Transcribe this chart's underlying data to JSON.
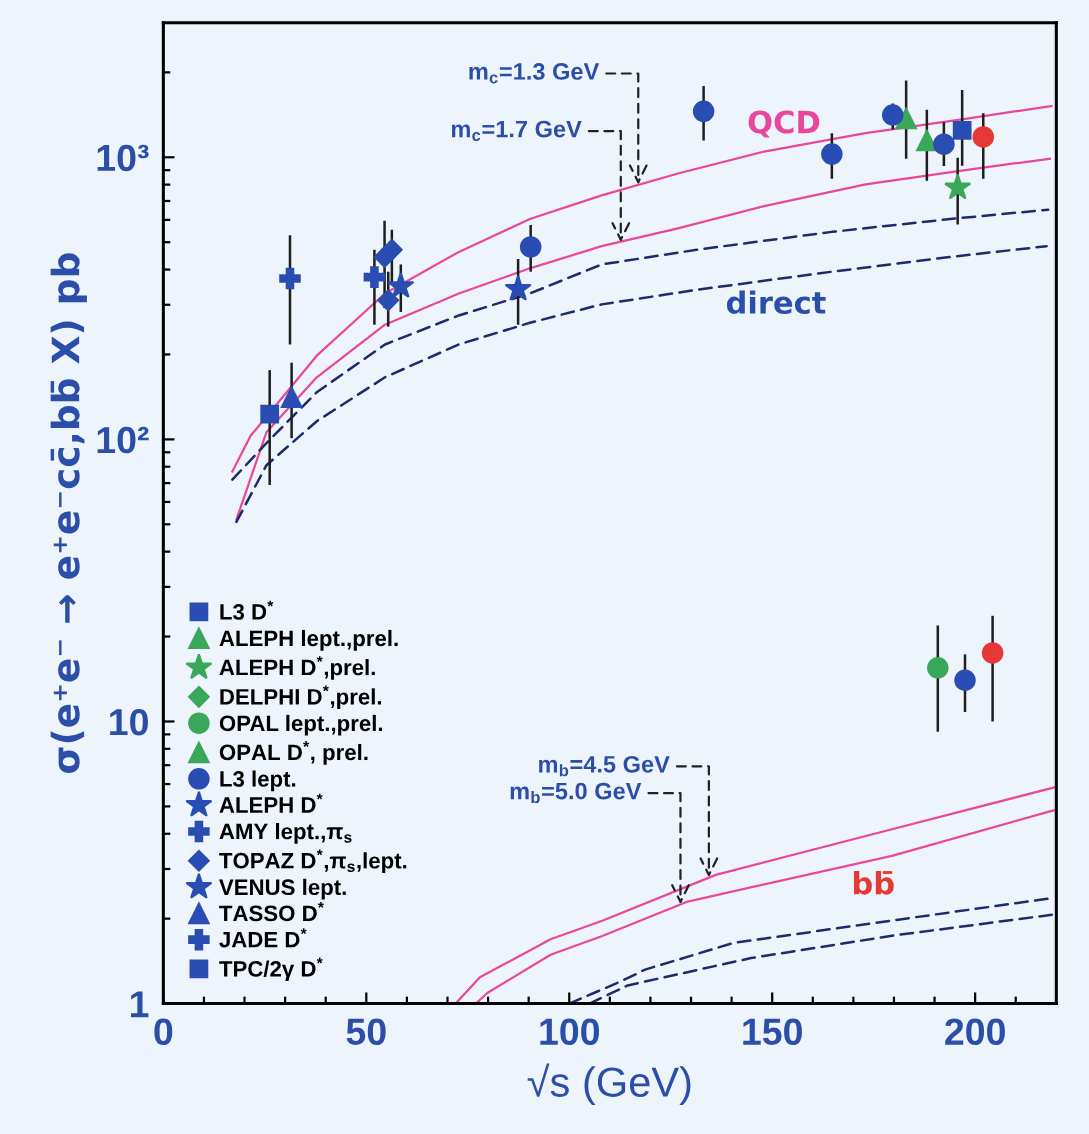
{
  "chart_data": {
    "type": "scatter",
    "xlabel": "√s (GeV)",
    "ylabel": "σ(e⁺e⁻ → e⁺e⁻cc̄,bb̄ X) pb",
    "log": true,
    "legend": "bottom left",
    "xlim": [
      0,
      220
    ],
    "ylim": [
      1,
      3000
    ],
    "xticks": [
      0,
      {
        "value": 10,
        "label": null
      },
      {
        "value": 20,
        "label": null
      },
      {
        "value": 30,
        "label": null
      },
      {
        "value": 40,
        "label": null
      },
      50,
      {
        "value": 60,
        "label": null
      },
      {
        "value": 70,
        "label": null
      },
      {
        "value": 80,
        "label": null
      },
      {
        "value": 90,
        "label": null
      },
      100,
      {
        "value": 110,
        "label": null
      },
      {
        "value": 120,
        "label": null
      },
      {
        "value": 130,
        "label": null
      },
      {
        "value": 140,
        "label": null
      },
      150,
      {
        "value": 160,
        "label": null
      },
      {
        "value": 170,
        "label": null
      },
      {
        "value": 180,
        "label": null
      },
      {
        "value": 190,
        "label": null
      },
      200,
      {
        "value": 210,
        "label": null
      }
    ],
    "yticks": [
      1,
      {
        "value": 2,
        "label": null
      },
      {
        "value": 3,
        "label": null
      },
      {
        "value": 4,
        "label": null
      },
      {
        "value": 5,
        "label": null
      },
      {
        "value": 6,
        "label": null
      },
      {
        "value": 7,
        "label": null
      },
      {
        "value": 8,
        "label": null
      },
      {
        "value": 9,
        "label": null
      },
      10,
      {
        "value": 20,
        "label": null
      },
      {
        "value": 30,
        "label": null
      },
      {
        "value": 40,
        "label": null
      },
      {
        "value": 50,
        "label": null
      },
      {
        "value": 60,
        "label": null
      },
      {
        "value": 70,
        "label": null
      },
      {
        "value": 80,
        "label": null
      },
      {
        "value": 90,
        "label": null
      },
      {
        "value": 100,
        "label": "10²"
      },
      {
        "value": 200,
        "label": null
      },
      {
        "value": 300,
        "label": null
      },
      {
        "value": 400,
        "label": null
      },
      {
        "value": 500,
        "label": null
      },
      {
        "value": 600,
        "label": null
      },
      {
        "value": 700,
        "label": null
      },
      {
        "value": 800,
        "label": null
      },
      {
        "value": 900,
        "label": null
      },
      {
        "value": 1000,
        "label": "10³"
      },
      {
        "value": 2000,
        "label": null
      }
    ],
    "series": [
      {
        "name": "L3 D$^{*}$",
        "marker": "square",
        "color": "#2a4db3",
        "x": [
          196.8
        ],
        "values": [
          1246
        ],
        "errors": [
          [
            934,
            1730
          ]
        ]
      },
      {
        "name": "ALEPH lept.,prel.",
        "marker": "triangle",
        "color": "#3aa85a",
        "x": [
          183
        ],
        "values": [
          1373
        ],
        "errors": [
          [
            989,
            1872
          ]
        ]
      },
      {
        "name": "ALEPH D$^{*}$,prel.",
        "marker": "star",
        "color": "#3aa85a",
        "x": [
          195.7
        ],
        "values": [
          780
        ],
        "errors": [
          [
            578,
            996
          ]
        ]
      },
      {
        "name": "DELPHI D$^{*}$,prel.",
        "marker": "diamond",
        "color": "#3aa85a"
      },
      {
        "name": "OPAL lept.,prel.",
        "marker": "circle",
        "color": "#3aa85a",
        "x": [
          190.8
        ],
        "values": [
          15.5
        ],
        "errors": [
          [
            9.2,
            21.9
          ]
        ]
      },
      {
        "name": "OPAL D$^{*}$, prel.",
        "marker": "triangle",
        "color": "#3aa85a",
        "x": [
          188.1
        ],
        "values": [
          1146
        ],
        "errors": [
          [
            826,
            1475
          ]
        ]
      },
      {
        "name": "L3 lept.",
        "marker": "circle",
        "color": "#2a4db3",
        "x": [
          90.5,
          133.1,
          164.7,
          179.7,
          192.3,
          197.5
        ],
        "values": [
          481,
          1455,
          1027,
          1412,
          1113,
          14.0
        ],
        "errors": [
          [
            393,
            575
          ],
          [
            1146,
            1791
          ],
          [
            839,
            1217
          ],
          [
            1254,
            1550
          ],
          [
            931,
            1330
          ],
          [
            10.8,
            17.3
          ]
        ]
      },
      {
        "name": "ALEPH D$^{*}$",
        "marker": "star",
        "color": "#2a4db3",
        "x": [
          87.4
        ],
        "values": [
          341
        ],
        "errors": [
          [
            255,
            436
          ]
        ]
      },
      {
        "name": "AMY lept.,π$_{s}$",
        "marker": "cross",
        "color": "#2a4db3",
        "x": [
          52.0
        ],
        "values": [
          376
        ],
        "errors": [
          [
            255,
            470
          ]
        ]
      },
      {
        "name": "TOPAZ D$^{*}$,π$_{s}$,lept.",
        "marker": "diamond",
        "color": "#2a4db3",
        "x": [
          54.5,
          55.4,
          56.3
        ],
        "values": [
          443,
          311,
          470
        ],
        "errors": [
          [
            292,
            596
          ],
          [
            251,
            393
          ],
          [
            359,
            553
          ]
        ]
      },
      {
        "name": "VENUS lept.",
        "marker": "star",
        "color": "#2a4db3",
        "x": [
          58.5
        ],
        "values": [
          349
        ],
        "errors": [
          [
            283,
            417
          ]
        ]
      },
      {
        "name": "TASSO D$^{*}$",
        "marker": "triangle",
        "color": "#2a4db3",
        "x": [
          31.6
        ],
        "values": [
          141
        ],
        "errors": [
          [
            101,
            187
          ]
        ]
      },
      {
        "name": "JADE D$^{*}$",
        "marker": "cross",
        "color": "#2a4db3",
        "x": [
          31.2
        ],
        "values": [
          372
        ],
        "errors": [
          [
            217,
            529
          ]
        ]
      },
      {
        "name": "TPC/2γ D$^{*}$",
        "marker": "square",
        "color": "#2a4db3",
        "x": [
          26.2
        ],
        "values": [
          123
        ],
        "errors": [
          [
            68.9,
            176
          ]
        ]
      },
      {
        "marker": "circle",
        "color": "#e53935",
        "x": [
          202,
          204.3
        ],
        "values": [
          1181,
          17.5
        ],
        "errors": [
          [
            839,
            1432
          ],
          [
            10.0,
            23.7
          ]
        ]
      },
      {
        "type": "line",
        "line_style": "solid",
        "color": "#e8479b",
        "x": [
          17,
          21.5,
          37.8,
          54.6,
          72.8,
          90.3,
          108,
          127,
          148,
          173,
          198,
          218.8
        ],
        "values": [
          77,
          103,
          198,
          329,
          462,
          604,
          733,
          878,
          1048,
          1218,
          1371,
          1520
        ]
      },
      {
        "type": "line",
        "line_style": "solid",
        "color": "#e8479b",
        "x": [
          18,
          25.4,
          37.8,
          54.6,
          72.8,
          90.3,
          108,
          127,
          148,
          173,
          198,
          218.4
        ],
        "values": [
          52,
          106,
          166,
          255,
          329,
          404,
          484,
          561,
          671,
          802,
          903,
          988
        ]
      },
      {
        "type": "line",
        "line_style": "dashed",
        "color": "#1c2b6b",
        "x": [
          17,
          25.4,
          37.8,
          54.6,
          72.8,
          90.3,
          108,
          131.4,
          164.7,
          193.8,
          218
        ],
        "values": [
          72,
          97,
          147,
          217,
          275,
          329,
          417,
          470,
          544,
          604,
          652
        ]
      },
      {
        "type": "line",
        "line_style": "dashed",
        "color": "#1c2b6b",
        "x": [
          18,
          25.4,
          37.8,
          54.6,
          72.8,
          90.3,
          108,
          131.4,
          164.7,
          193.8,
          217.6
        ],
        "values": [
          51,
          81,
          116,
          166,
          217,
          259,
          301,
          339,
          393,
          443,
          484
        ]
      },
      {
        "type": "line",
        "line_style": "solid",
        "color": "#e8479b",
        "x": [
          72,
          78,
          95.4,
          108.3,
          136.1,
          179.5,
          219.5
        ],
        "values": [
          1.0,
          1.24,
          1.69,
          1.97,
          2.86,
          4.15,
          5.84
        ]
      },
      {
        "type": "line",
        "line_style": "solid",
        "color": "#e8479b",
        "x": [
          77,
          79.8,
          95.4,
          108.3,
          129.2,
          179.5,
          219.5
        ],
        "values": [
          1.0,
          1.09,
          1.49,
          1.74,
          2.3,
          3.34,
          4.85
        ]
      },
      {
        "type": "line",
        "line_style": "dashed",
        "color": "#1c2b6b",
        "x": [
          100,
          112.8,
          118.7,
          140.4,
          179.5,
          219.5
        ],
        "values": [
          1.0,
          1.2,
          1.32,
          1.64,
          1.97,
          2.37
        ]
      },
      {
        "type": "line",
        "line_style": "dashed",
        "color": "#1c2b6b",
        "x": [
          105,
          114.4,
          144.8,
          179.5,
          219.5
        ],
        "values": [
          1.0,
          1.16,
          1.45,
          1.74,
          2.07
        ]
      }
    ],
    "annotations": [
      {
        "text": "m$_{c}$=1.3 GeV",
        "x": 117,
        "y": 800
      },
      {
        "text": "m$_{c}$=1.7 GeV",
        "x": 112.7,
        "y": 500
      },
      {
        "text": "m$_{b}$=4.5 GeV",
        "x": 134.4,
        "y": 2.8
      },
      {
        "text": "m$_{b}$=5.0 GeV",
        "x": 127.4,
        "y": 2.25
      },
      "QCD",
      "direct",
      "bb̄"
    ]
  }
}
